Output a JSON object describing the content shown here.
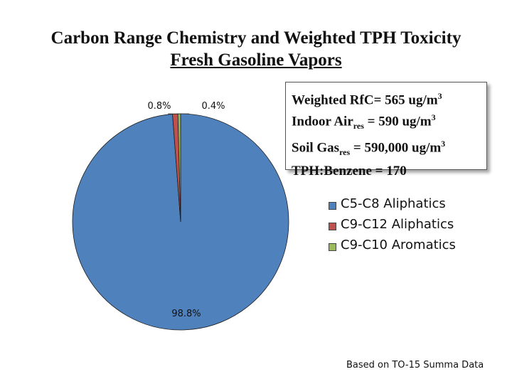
{
  "chart_data": {
    "type": "pie",
    "title": "Carbon Range Chemistry and Weighted TPH Toxicity",
    "subtitle": "Fresh Gasoline Vapors",
    "slices": [
      {
        "name": "C5-C8 Aliphatics",
        "value": 98.8,
        "label": "98.8%",
        "color": "#4f81bd"
      },
      {
        "name": "C9-C12 Aliphatics",
        "value": 0.8,
        "label": "0.8%",
        "color": "#c0504d"
      },
      {
        "name": "C9-C10 Aromatics",
        "value": 0.4,
        "label": "0.4%",
        "color": "#9bbb59"
      }
    ],
    "legend": "right"
  },
  "infobox": {
    "line1_prefix": "Weighted RfC= 565 ug/m",
    "line1_sup": "3",
    "line2_prefix": "Indoor Air",
    "line2_sub": "res",
    "line2_mid": " = 590 ug/m",
    "line2_sup": "3",
    "line3_prefix": "Soil Gas",
    "line3_sub": "res",
    "line3_mid": " = 590,000 ug/m",
    "line3_sup": "3",
    "line4": "TPH:Benzene = 170"
  },
  "note": "Based on TO-15 Summa Data"
}
